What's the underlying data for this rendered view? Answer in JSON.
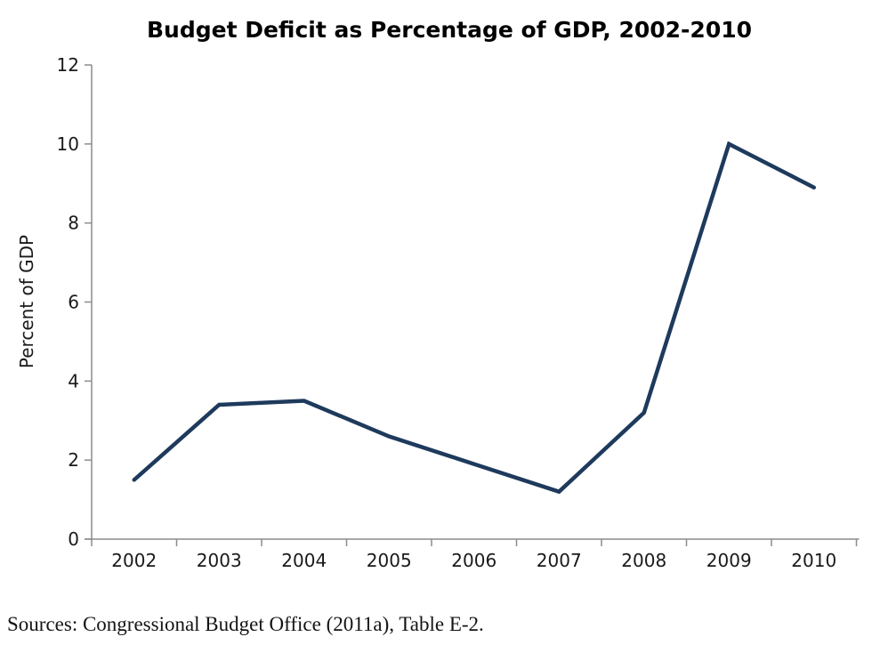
{
  "chart_data": {
    "type": "line",
    "title": "Budget Deficit as Percentage of GDP, 2002-2010",
    "xlabel": "",
    "ylabel": "Percent of GDP",
    "categories": [
      "2002",
      "2003",
      "2004",
      "2005",
      "2006",
      "2007",
      "2008",
      "2009",
      "2010"
    ],
    "series": [
      {
        "name": "Budget deficit as percentage of GDP",
        "values": [
          1.5,
          3.4,
          3.5,
          2.6,
          1.9,
          1.2,
          3.2,
          10.0,
          8.9
        ]
      }
    ],
    "ylim": [
      0,
      12
    ],
    "y_ticks": [
      0,
      2,
      4,
      6,
      8,
      10,
      12
    ],
    "grid": false,
    "legend_position": "none",
    "line_color": "#1E3A5C",
    "axis_color": "#8C8C8C",
    "tick_label_color": "#1a1a1a"
  },
  "source_note": "Sources: Congressional Budget Office (2011a), Table E-2."
}
